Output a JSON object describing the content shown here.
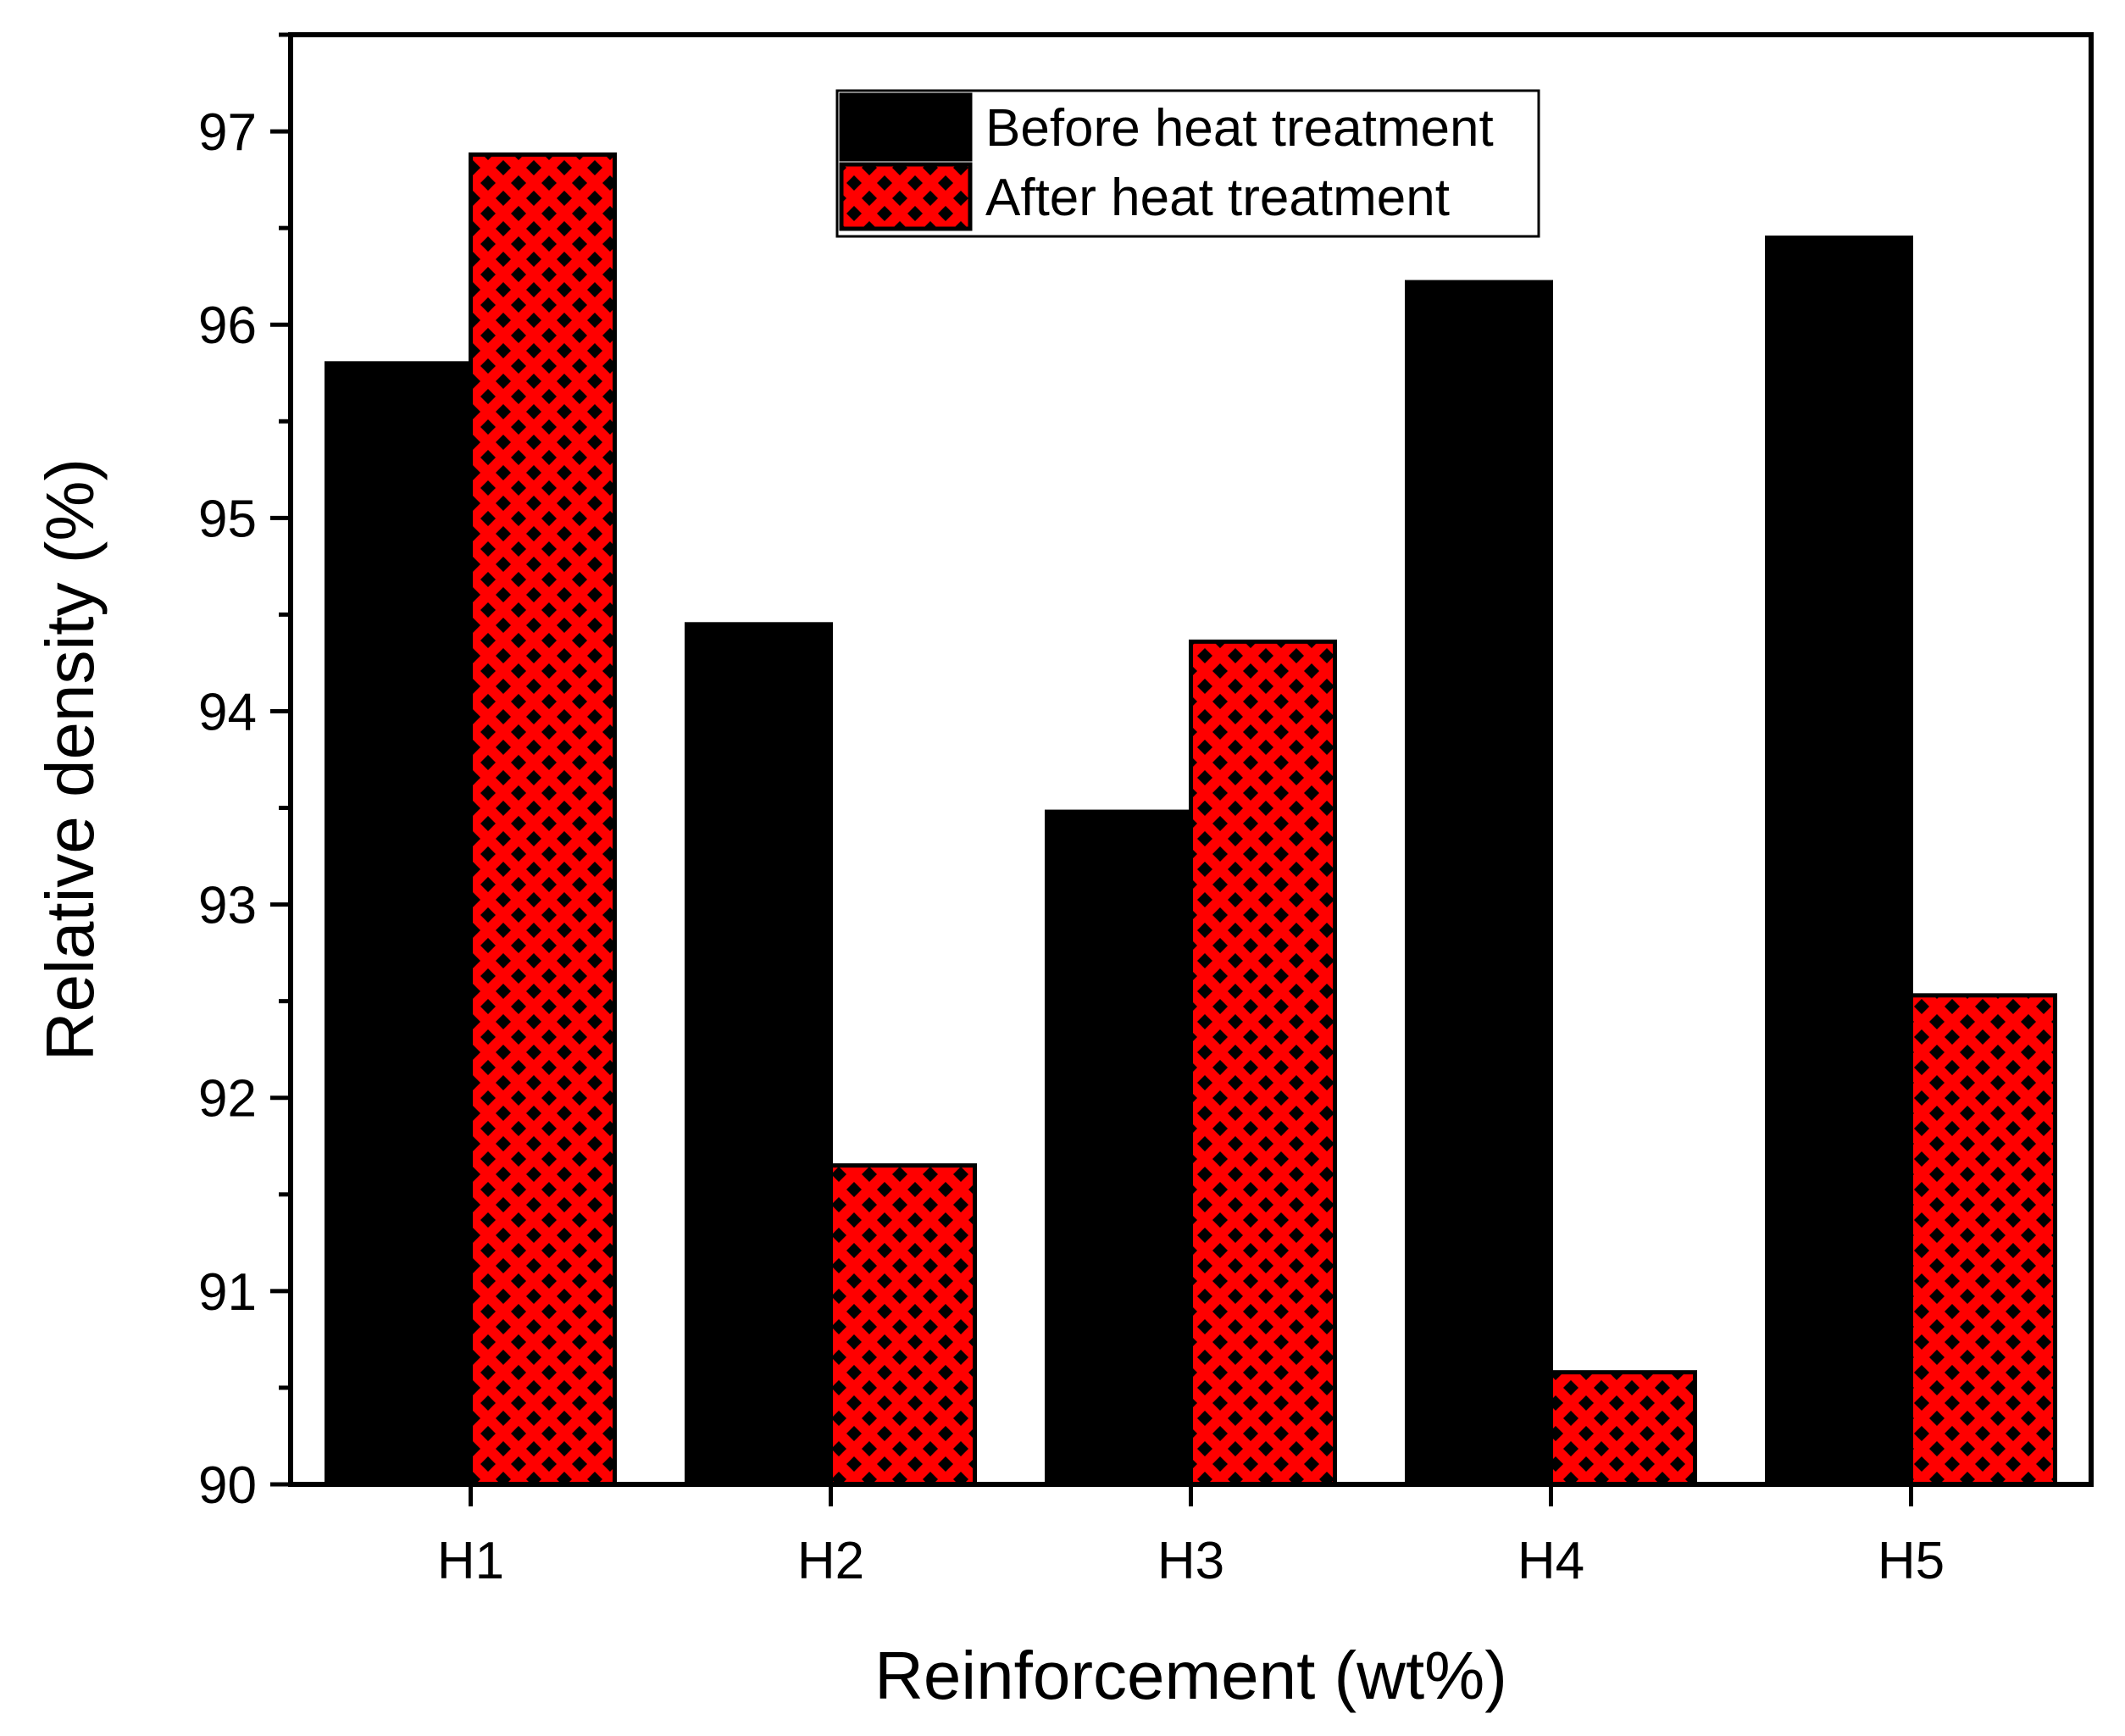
{
  "chart_data": {
    "type": "bar",
    "title": "",
    "xlabel": "Reinforcement (wt%)",
    "ylabel": "Relative density (%)",
    "categories": [
      "H1",
      "H2",
      "H3",
      "H4",
      "H5"
    ],
    "ylim": [
      90,
      97.5
    ],
    "yticks": [
      90,
      91,
      92,
      93,
      94,
      95,
      96,
      97
    ],
    "grid": false,
    "legend_position": "top-center",
    "series": [
      {
        "name": "Before heat treatment",
        "values": [
          95.8,
          94.45,
          93.48,
          96.22,
          96.45
        ],
        "color": "#000000",
        "pattern": "solid"
      },
      {
        "name": "After heat treatment",
        "values": [
          96.88,
          91.65,
          94.36,
          90.58,
          92.53
        ],
        "color": "#ff0000",
        "pattern": "black-diamond-checker"
      }
    ]
  }
}
